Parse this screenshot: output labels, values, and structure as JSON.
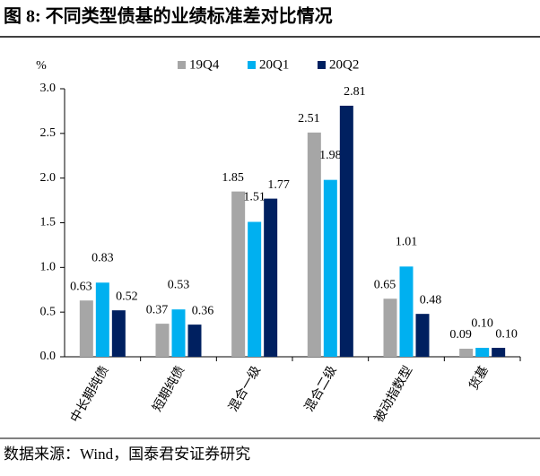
{
  "chart_data": {
    "type": "bar",
    "title": "图 8:  不同类型债基的业绩标准差对比情况",
    "source": "数据来源：Wind，国泰君安证券研究",
    "y_unit": "%",
    "categories": [
      "中长期纯债",
      "短期纯债",
      "混合一级",
      "混合二级",
      "被动指数型",
      "货基"
    ],
    "series": [
      {
        "name": "19Q4",
        "color": "#a6a6a6",
        "values": [
          0.63,
          0.37,
          1.85,
          2.51,
          0.65,
          0.09
        ],
        "value_labels": [
          "0.63",
          "0.37",
          "1.85",
          "2.51",
          "0.65",
          "0.09"
        ]
      },
      {
        "name": "20Q1",
        "color": "#00b0f0",
        "values": [
          0.83,
          0.53,
          1.51,
          1.98,
          1.01,
          0.1
        ],
        "value_labels": [
          "0.83",
          "0.53",
          "1.51",
          "1.98",
          "1.01",
          "0.10"
        ]
      },
      {
        "name": "20Q2",
        "color": "#002060",
        "values": [
          0.52,
          0.36,
          1.77,
          2.81,
          0.48,
          0.1
        ],
        "value_labels": [
          "0.52",
          "0.36",
          "1.77",
          "2.81",
          "0.48",
          "0.10"
        ]
      }
    ],
    "ylim": [
      0,
      3
    ],
    "yticks": [
      {
        "value": 0,
        "label": "0.0"
      },
      0.5,
      {
        "value": 1,
        "label": "1.0"
      },
      1.5,
      {
        "value": 2,
        "label": "2.0"
      },
      2.5,
      {
        "value": 3,
        "label": "3.0"
      }
    ]
  }
}
